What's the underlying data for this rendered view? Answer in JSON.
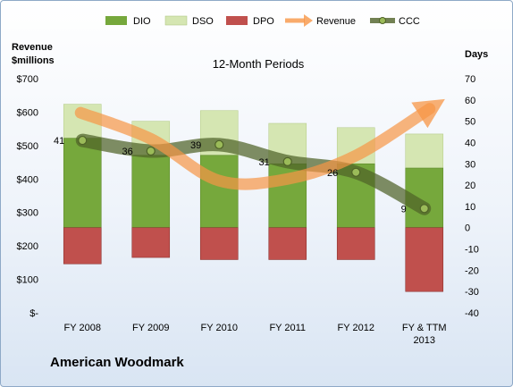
{
  "chart_data": {
    "type": "bar",
    "title": "12-Month Periods",
    "company": "American Woodmark",
    "categories": [
      "FY 2008",
      "FY 2009",
      "FY 2010",
      "FY 2011",
      "FY 2012",
      "FY & TTM 2013"
    ],
    "left_axis": {
      "label": "Revenue $millions",
      "ticks": [
        "$-",
        "$100",
        "$200",
        "$300",
        "$400",
        "$500",
        "$600",
        "$700"
      ],
      "ylim": [
        0,
        700
      ]
    },
    "right_axis": {
      "label": "Days",
      "ticks": [
        "-40",
        "-30",
        "-20",
        "-10",
        "0",
        "10",
        "20",
        "30",
        "40",
        "50",
        "60",
        "70"
      ],
      "ylim": [
        -40,
        70
      ]
    },
    "legend": [
      "DIO",
      "DSO",
      "DPO",
      "Revenue",
      "CCC"
    ],
    "legend_position": "top",
    "series": [
      {
        "name": "DIO",
        "axis": "right",
        "kind": "stacked-bar",
        "color": "#76a83c",
        "values": [
          42,
          34,
          34,
          30,
          30,
          28
        ]
      },
      {
        "name": "DSO",
        "axis": "right",
        "kind": "stacked-bar",
        "color": "#d5e6b2",
        "values": [
          16,
          16,
          21,
          19,
          17,
          16
        ]
      },
      {
        "name": "DPO",
        "axis": "right",
        "kind": "bar",
        "color": "#c0504d",
        "values": [
          -17,
          -14,
          -15,
          -15,
          -15,
          -30
        ]
      },
      {
        "name": "Revenue",
        "axis": "left",
        "kind": "smooth-line-arrow",
        "color": "#f79646",
        "values": [
          598,
          520,
          395,
          400,
          470,
          610
        ]
      },
      {
        "name": "CCC",
        "axis": "right",
        "kind": "smooth-line-markers",
        "color": "#4f6228",
        "values": [
          41,
          36,
          39,
          31,
          26,
          9
        ]
      }
    ],
    "data_labels": [
      "41",
      "36",
      "39",
      "31",
      "26",
      "9"
    ],
    "grid": false
  }
}
